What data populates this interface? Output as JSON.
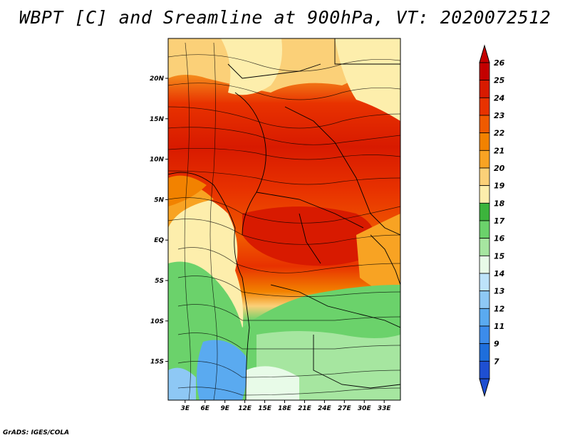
{
  "title": "WBPT [C] and Sreamline at 900hPa, VT: 2020072512",
  "credit": "GrADS: IGES/COLA",
  "map": {
    "lon_labels": [
      "3E",
      "6E",
      "9E",
      "12E",
      "15E",
      "18E",
      "21E",
      "24E",
      "27E",
      "30E",
      "33E"
    ],
    "lon_values": [
      3,
      6,
      9,
      12,
      15,
      18,
      21,
      24,
      27,
      30,
      33
    ],
    "lat_labels": [
      "20N",
      "15N",
      "10N",
      "5N",
      "EQ",
      "5S",
      "10S",
      "15S"
    ],
    "lat_values": [
      20,
      15,
      10,
      5,
      0,
      -5,
      -10,
      -15
    ]
  },
  "colorbar": {
    "levels": [
      "26",
      "25",
      "24",
      "23",
      "22",
      "21",
      "20",
      "19",
      "18",
      "17",
      "16",
      "15",
      "14",
      "13",
      "12",
      "11",
      "9",
      "7"
    ],
    "colors": [
      "#c40000",
      "#d81a00",
      "#e83200",
      "#f05a00",
      "#f28200",
      "#f8a323",
      "#fbd078",
      "#fdeeac",
      "#3cb43c",
      "#6bd26b",
      "#a6e6a0",
      "#e8fbe8",
      "#bde3fa",
      "#8ec8f5",
      "#5aaaf0",
      "#3c8ceb",
      "#1e6edc",
      "#1e4fd2"
    ]
  }
}
